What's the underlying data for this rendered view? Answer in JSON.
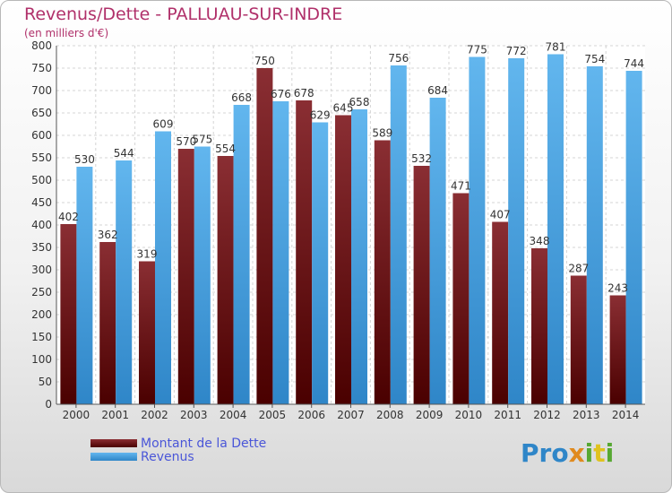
{
  "title": "Revenus/Dette - PALLUAU-SUR-INDRE",
  "subtitle": "(en milliers d'€)",
  "logo_text": "Proxiti",
  "colors": {
    "dette_top": "#8a2e33",
    "dette_bottom": "#4a0000",
    "revenus_top": "#62b6ee",
    "revenus_bottom": "#2f86c8",
    "title": "#b0306a",
    "legend_text": "#4a56d8"
  },
  "chart_data": {
    "type": "bar",
    "title": "Revenus/Dette - PALLUAU-SUR-INDRE",
    "subtitle": "(en milliers d'€)",
    "xlabel": "",
    "ylabel": "",
    "ylim": [
      0,
      800
    ],
    "yticks": [
      0,
      50,
      100,
      150,
      200,
      250,
      300,
      350,
      400,
      450,
      500,
      550,
      600,
      650,
      700,
      750,
      800
    ],
    "grid": true,
    "legend_position": "bottom-left",
    "categories": [
      "2000",
      "2001",
      "2002",
      "2003",
      "2004",
      "2005",
      "2006",
      "2007",
      "2008",
      "2009",
      "2010",
      "2011",
      "2012",
      "2013",
      "2014"
    ],
    "series": [
      {
        "name": "Montant de la Dette",
        "values": [
          402,
          362,
          319,
          570,
          554,
          750,
          678,
          645,
          589,
          532,
          471,
          407,
          348,
          287,
          243
        ]
      },
      {
        "name": "Revenus",
        "values": [
          530,
          544,
          609,
          575,
          668,
          676,
          629,
          658,
          756,
          684,
          775,
          772,
          781,
          754,
          744
        ]
      }
    ]
  }
}
